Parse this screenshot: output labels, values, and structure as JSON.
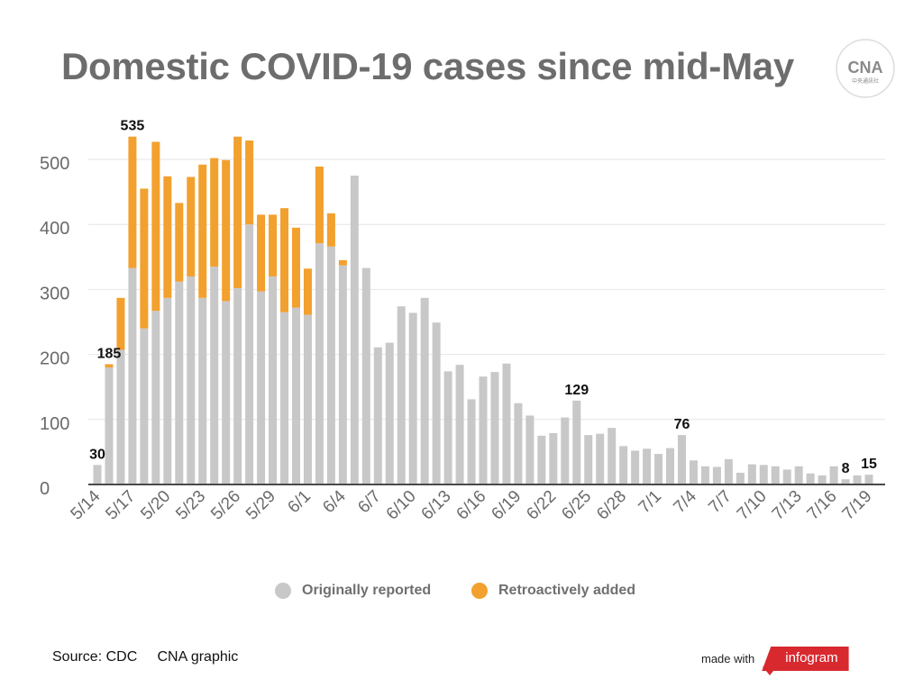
{
  "title": "Domestic COVID-19 cases since mid-May",
  "logo": {
    "name": "cna-logo",
    "text": "CNA",
    "subtext": "中央通訊社"
  },
  "colors": {
    "original": "#c8c8c8",
    "retro": "#f2a02e",
    "grid": "#e6e6e6",
    "axis": "#4a4a4a",
    "tick": "#6a6a6a"
  },
  "legend": [
    {
      "label": "Originally reported",
      "color": "#c8c8c8"
    },
    {
      "label": "Retroactively added",
      "color": "#f2a02e"
    }
  ],
  "footer": {
    "source": "Source: CDC",
    "credit": "CNA graphic",
    "made_with": "made with",
    "brand": "infogram"
  },
  "chart_data": {
    "type": "bar",
    "stacked": true,
    "title": "Domestic COVID-19 cases since mid-May",
    "ylim": [
      0,
      540
    ],
    "yticks": [
      0,
      100,
      200,
      300,
      400,
      500
    ],
    "grid": true,
    "legend_position": "bottom",
    "categories": [
      "5/14",
      "5/15",
      "5/16",
      "5/17",
      "5/18",
      "5/19",
      "5/20",
      "5/21",
      "5/22",
      "5/23",
      "5/24",
      "5/25",
      "5/26",
      "5/27",
      "5/28",
      "5/29",
      "5/30",
      "5/31",
      "6/1",
      "6/2",
      "6/3",
      "6/4",
      "6/5",
      "6/6",
      "6/7",
      "6/8",
      "6/9",
      "6/10",
      "6/11",
      "6/12",
      "6/13",
      "6/14",
      "6/15",
      "6/16",
      "6/17",
      "6/18",
      "6/19",
      "6/20",
      "6/21",
      "6/22",
      "6/23",
      "6/24",
      "6/25",
      "6/26",
      "6/27",
      "6/28",
      "6/29",
      "6/30",
      "7/1",
      "7/2",
      "7/3",
      "7/4",
      "7/5",
      "7/6",
      "7/7",
      "7/8",
      "7/9",
      "7/10",
      "7/11",
      "7/12",
      "7/13",
      "7/14",
      "7/15",
      "7/16",
      "7/17",
      "7/18",
      "7/19"
    ],
    "xticks": [
      "5/14",
      "5/17",
      "5/20",
      "5/23",
      "5/26",
      "5/29",
      "6/1",
      "6/4",
      "6/7",
      "6/10",
      "6/13",
      "6/16",
      "6/19",
      "6/22",
      "6/25",
      "6/28",
      "7/1",
      "7/4",
      "7/7",
      "7/10",
      "7/13",
      "7/16",
      "7/19"
    ],
    "series": [
      {
        "name": "Originally reported",
        "values": [
          30,
          180,
          207,
          333,
          240,
          267,
          287,
          312,
          320,
          287,
          335,
          282,
          302,
          400,
          297,
          320,
          265,
          272,
          261,
          371,
          366,
          337,
          475,
          333,
          211,
          218,
          274,
          264,
          287,
          249,
          174,
          184,
          131,
          166,
          173,
          186,
          125,
          106,
          75,
          79,
          103,
          129,
          76,
          78,
          87,
          59,
          52,
          55,
          47,
          56,
          76,
          37,
          28,
          27,
          39,
          18,
          31,
          30,
          28,
          23,
          28,
          17,
          14,
          28,
          8,
          14,
          15
        ]
      },
      {
        "name": "Retroactively added",
        "values": [
          0,
          5,
          80,
          202,
          215,
          260,
          187,
          121,
          153,
          205,
          167,
          217,
          233,
          129,
          118,
          95,
          160,
          123,
          71,
          118,
          51,
          8,
          0,
          0,
          0,
          0,
          0,
          0,
          0,
          0,
          0,
          0,
          0,
          0,
          0,
          0,
          0,
          0,
          0,
          0,
          0,
          0,
          0,
          0,
          0,
          0,
          0,
          0,
          0,
          0,
          0,
          0,
          0,
          0,
          0,
          0,
          0,
          0,
          0,
          0,
          0,
          0,
          0,
          0,
          0,
          0,
          0
        ]
      }
    ],
    "annotations": [
      {
        "label": "30",
        "category": "5/14",
        "value": 30
      },
      {
        "label": "185",
        "category": "5/15",
        "value": 185
      },
      {
        "label": "535",
        "category": "5/17",
        "value": 535
      },
      {
        "label": "129",
        "category": "6/24",
        "value": 129
      },
      {
        "label": "76",
        "category": "7/3",
        "value": 76
      },
      {
        "label": "8",
        "category": "7/17",
        "value": 8
      },
      {
        "label": "15",
        "category": "7/19",
        "value": 15
      }
    ]
  }
}
